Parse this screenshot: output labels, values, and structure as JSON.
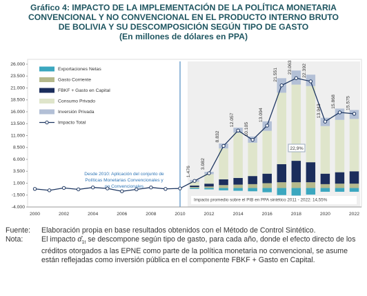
{
  "chart_data": {
    "type": "bar",
    "title_lines": [
      "Gráfico 4: IMPACTO DE LA IMPLEMENTACIÓN DE LA POLÍTICA MONETARIA",
      "CONVENCIONAL Y NO CONVENCIONAL EN EL PRODUCTO INTERNO BRUTO",
      "DE BOLIVIA Y SU DESCOMPOSICIÓN SEGÚN TIPO DE GASTO",
      "(En millones de dólares en PPA)"
    ],
    "categories": [
      "2000",
      null,
      "2002",
      null,
      "2004",
      null,
      "2006",
      null,
      "2008",
      null,
      "2010",
      null,
      "2012",
      null,
      "2014",
      null,
      "2016",
      null,
      "2018",
      null,
      "2020",
      null,
      "2022"
    ],
    "ylim": [
      -4000,
      26000
    ],
    "yticks": [
      {
        "value": -4000,
        "label": "-4.000"
      },
      {
        "value": -1500,
        "label": "-1.500"
      },
      {
        "value": 1000,
        "label": "1.000"
      },
      {
        "value": 3500,
        "label": "3.500"
      },
      {
        "value": 6000,
        "label": "6.000"
      },
      {
        "value": 8500,
        "label": "8.500"
      },
      {
        "value": 11000,
        "label": "11.000"
      },
      {
        "value": 13500,
        "label": "13.500"
      },
      {
        "value": 16000,
        "label": "16.000"
      },
      {
        "value": 18500,
        "label": "18.500"
      },
      {
        "value": 21000,
        "label": "21.000"
      },
      {
        "value": 23500,
        "label": "23.500"
      },
      {
        "value": 26000,
        "label": "26.000"
      }
    ],
    "grid": false,
    "legend": "upper left",
    "series": [
      {
        "name": "Exportaciones Netas",
        "color": "#3ba7bf",
        "values": [
          null,
          null,
          null,
          null,
          null,
          null,
          null,
          null,
          null,
          null,
          null,
          -200,
          -300,
          -500,
          -600,
          -700,
          -900,
          -1500,
          -1600,
          -1400,
          -800,
          -800,
          -800
        ]
      },
      {
        "name": "Gasto Corriente",
        "color": "#b5b98c",
        "values": [
          null,
          null,
          null,
          null,
          null,
          null,
          null,
          null,
          null,
          null,
          null,
          200,
          300,
          600,
          700,
          800,
          1000,
          1200,
          1200,
          1200,
          800,
          900,
          900
        ]
      },
      {
        "name": "FBKF + Gasto en Capital",
        "color": "#1b2d5c",
        "values": [
          null,
          null,
          null,
          null,
          null,
          null,
          null,
          null,
          null,
          null,
          null,
          300,
          600,
          1200,
          1400,
          1700,
          2000,
          3800,
          4500,
          4200,
          2200,
          2400,
          2600
        ]
      },
      {
        "name": "Consumo Privado",
        "color": "#dfe5cb",
        "values": [
          null,
          null,
          null,
          null,
          null,
          null,
          null,
          null,
          null,
          null,
          null,
          800,
          2000,
          6500,
          9500,
          7000,
          9000,
          15000,
          16000,
          16000,
          10000,
          11000,
          11000
        ]
      },
      {
        "name": "Inversión Privada",
        "color": "#b3c0d6",
        "values": [
          null,
          null,
          null,
          null,
          null,
          null,
          null,
          null,
          null,
          null,
          null,
          376,
          482,
          1032,
          1057,
          1305,
          1994,
          3051,
          2963,
          2392,
          1743,
          2368,
          1875
        ]
      },
      {
        "name": "Impacto Total",
        "type": "line",
        "color": "#1c3560",
        "values": [
          -200,
          -500,
          0,
          -300,
          100,
          -100,
          -700,
          -300,
          100,
          -200,
          -100,
          1476,
          3082,
          8832,
          12057,
          10105,
          13094,
          21551,
          23063,
          22392,
          13943,
          15868,
          15575
        ],
        "value_labels": [
          null,
          null,
          null,
          null,
          null,
          null,
          null,
          null,
          null,
          null,
          null,
          "1.476",
          "3.082",
          "8.832",
          "12.057",
          "10.105",
          "13.094",
          "21.551",
          "23.063",
          "22.392",
          "13.943",
          "15.868",
          "15.575"
        ]
      }
    ],
    "annotations": {
      "policy_lines": [
        "Desde 2010: Aplicación del conjunto de",
        "Políticas Monetarias Convencionales y",
        "no Convencionales"
      ],
      "peak_share": "22,9%",
      "average": "Impacto promedio sobre el PIB en PPA sintético 2011 - 2022: 14,55%"
    }
  },
  "footer": {
    "source_label": "Fuente:",
    "source": "Elaboración propia en base resultados obtenidos con el Método de Control Sintético.",
    "note_label": "Nota:",
    "note_before": "El impacto ",
    "note_symbol": "α̂",
    "note_subscript": "1t",
    "note_after": " se descompone según tipo de gasto, para cada año, donde el efecto directo de los créditos otorgados a las EPNE como parte de la política monetaria no convencional, se asume están reflejadas como inversión pública en el componente FBKF + Gasto en Capital."
  }
}
